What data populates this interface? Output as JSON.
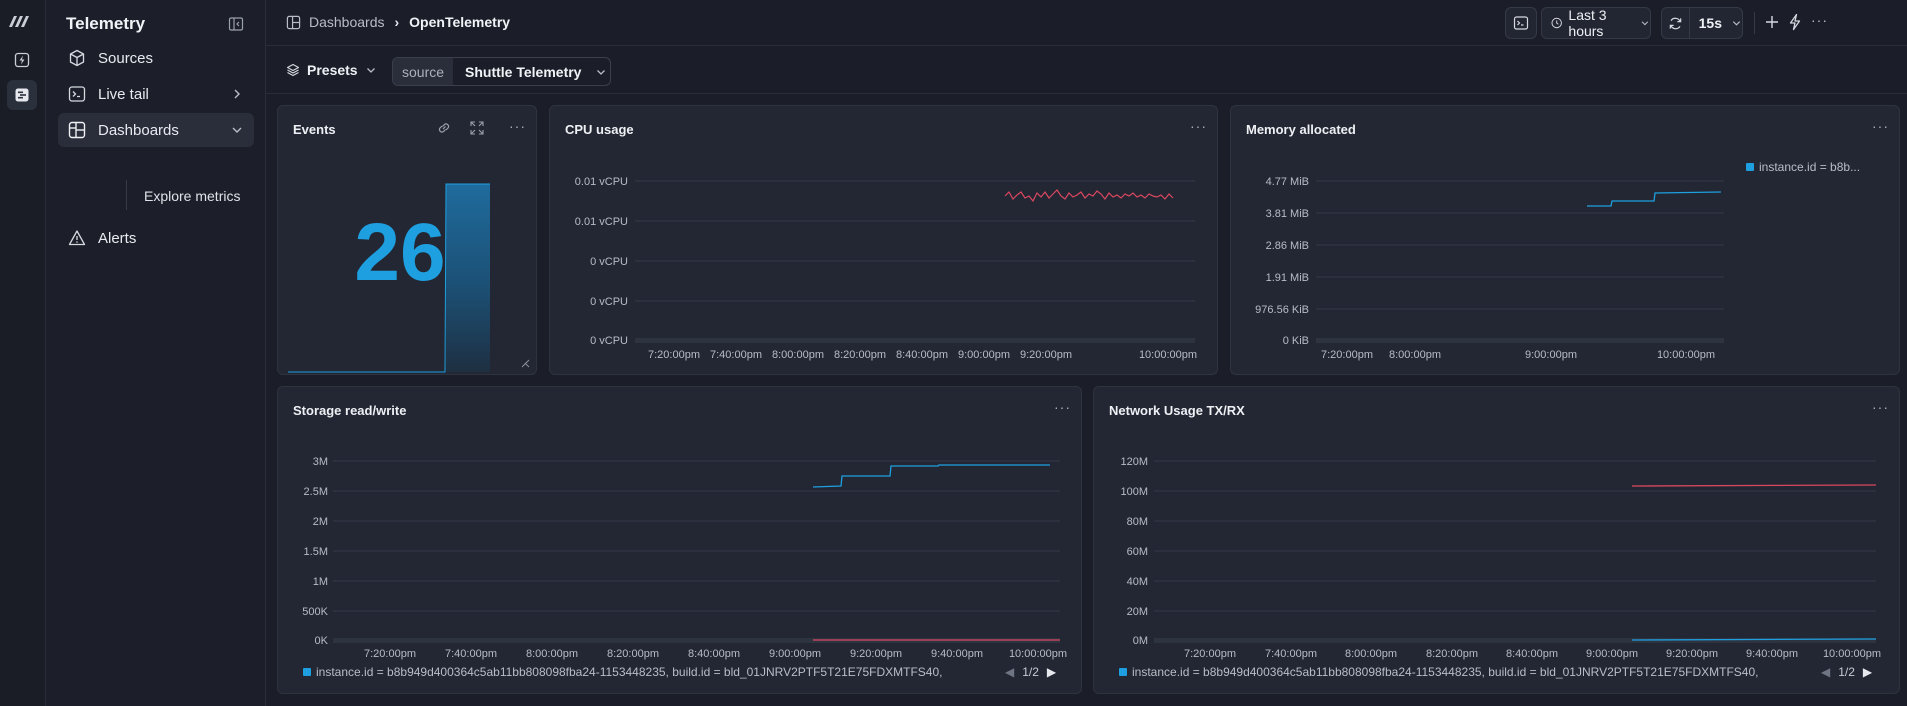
{
  "app": {
    "title": "Telemetry"
  },
  "sidebar": {
    "items": [
      {
        "label": "Sources",
        "icon": "cube-icon"
      },
      {
        "label": "Live tail",
        "icon": "terminal-icon"
      },
      {
        "label": "Dashboards",
        "icon": "dashboard-icon"
      },
      {
        "label": "Alerts",
        "icon": "alert-triangle-icon"
      }
    ],
    "sub_items": [
      {
        "label": "Explore metrics"
      }
    ]
  },
  "header": {
    "breadcrumb_root": "Dashboards",
    "breadcrumb_current": "OpenTelemetry",
    "time_range": "Last 3 hours",
    "refresh_interval": "15s",
    "more": "···"
  },
  "presets": {
    "label": "Presets",
    "source_label": "source",
    "source_value": "Shuttle Telemetry"
  },
  "panels": {
    "events": {
      "title": "Events",
      "value": "26"
    },
    "cpu": {
      "title": "CPU usage",
      "y_ticks": [
        "0.01 vCPU",
        "0.01 vCPU",
        "0 vCPU",
        "0 vCPU",
        "0 vCPU"
      ],
      "x_ticks": [
        "7:20:00pm",
        "7:40:00pm",
        "8:00:00pm",
        "8:20:00pm",
        "8:40:00pm",
        "9:00:00pm",
        "9:20:00pm",
        "10:00:00pm"
      ]
    },
    "memory": {
      "title": "Memory allocated",
      "y_ticks": [
        "4.77 MiB",
        "3.81 MiB",
        "2.86 MiB",
        "1.91 MiB",
        "976.56 KiB",
        "0 KiB"
      ],
      "x_ticks": [
        "7:20:00pm",
        "8:00:00pm",
        "9:00:00pm",
        "10:00:00pm"
      ],
      "legend": "instance.id = b8b..."
    },
    "storage": {
      "title": "Storage read/write",
      "y_ticks": [
        "3M",
        "2.5M",
        "2M",
        "1.5M",
        "1M",
        "500K",
        "0K"
      ],
      "x_ticks": [
        "7:20:00pm",
        "7:40:00pm",
        "8:00:00pm",
        "8:20:00pm",
        "8:40:00pm",
        "9:00:00pm",
        "9:20:00pm",
        "9:40:00pm",
        "10:00:00pm"
      ],
      "legend": "instance.id = b8b949d400364c5ab11bb808098fba24-1153448235, build.id = bld_01JNRV2PTF5T21E75FDXMTFS40,",
      "page": "1/2"
    },
    "network": {
      "title": "Network Usage TX/RX",
      "y_ticks": [
        "120M",
        "100M",
        "80M",
        "60M",
        "40M",
        "20M",
        "0M"
      ],
      "x_ticks": [
        "7:20:00pm",
        "7:40:00pm",
        "8:00:00pm",
        "8:20:00pm",
        "8:40:00pm",
        "9:00:00pm",
        "9:20:00pm",
        "9:40:00pm",
        "10:00:00pm"
      ],
      "legend": "instance.id = b8b949d400364c5ab11bb808098fba24-1153448235, build.id = bld_01JNRV2PTF5T21E75FDXMTFS40,",
      "page": "1/2"
    }
  },
  "colors": {
    "accent_blue": "#1e9fe0",
    "accent_red": "#d9475f",
    "background": "#1b1e28",
    "panel": "#232733"
  }
}
